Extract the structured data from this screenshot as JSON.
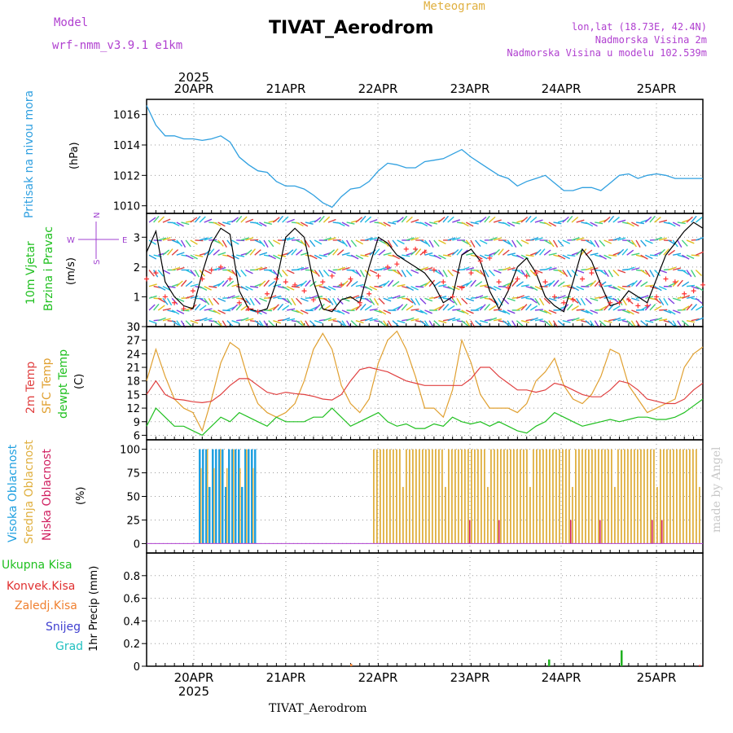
{
  "header": {
    "model_label": "Model",
    "model_name": "wrf-nmm_v3.9.1  e1km",
    "title": "TIVAT_Aerodrom",
    "meteogram": "Meteogram",
    "lonlat": "lon,lat (18.73E, 42.4N)",
    "altitude": "Nadmorska Visina 2m",
    "model_altitude": "Nadmorska Visina u modelu 102.539m",
    "footer_station": "TIVAT_Aerodrom",
    "credit": "made by Angel"
  },
  "time_axis": {
    "year": "2025",
    "days": [
      "20APR",
      "21APR",
      "22APR",
      "23APR",
      "24APR",
      "25APR"
    ]
  },
  "panels": {
    "pressure": {
      "label": "Pritisak na nivou mora",
      "unit": "(hPa)",
      "color": "#30a0e0"
    },
    "wind": {
      "label1": "10m Vjetar",
      "label2": "Brzina i Pravac",
      "unit": "(m/s)",
      "compass": [
        "N",
        "S",
        "W",
        "E"
      ]
    },
    "temp": {
      "label1": "2m Temp",
      "label2": "SFC Temp",
      "label3": "dewpt Temp",
      "unit": "(C)"
    },
    "cloud": {
      "label1": "Visoka Oblacnost",
      "label2": "Srednja Oblacnost",
      "label3": "Niska Oblacnost",
      "unit": "(%)"
    },
    "precip": {
      "unit": "1hr Precip (mm)",
      "legend": [
        "Ukupna Kisa",
        "Konvek.Kisa",
        "Zaledj.Kisa",
        "Snijeg",
        "Grad"
      ]
    }
  },
  "colors": {
    "pressure": "#30a0e0",
    "temp2m": "#e04040",
    "sfc": "#e0a030",
    "dewpt": "#20c020",
    "wind_line": "#000000",
    "gust": "#ff3030",
    "high_cloud": "#20a0e0",
    "mid_cloud": "#e0b040",
    "low_cloud": "#d02060",
    "total_rain": "#20b020",
    "conv_rain": "#e03030",
    "freeze_rain": "#f08030",
    "snow": "#4040d0",
    "hail": "#20c0c0"
  },
  "chart_data": [
    {
      "type": "line",
      "name": "pressure",
      "ylabel": "Pritisak na nivou mora (hPa)",
      "ylim": [
        1009.5,
        1017
      ],
      "yticks": [
        1010,
        1012,
        1014,
        1016
      ],
      "x": [
        0,
        1,
        2,
        3,
        4,
        5,
        6,
        7,
        8,
        9,
        10,
        11,
        12,
        13,
        14,
        15,
        16,
        17,
        18,
        19,
        20,
        21,
        22,
        23,
        24,
        25,
        26,
        27,
        28,
        29,
        30,
        31,
        32,
        33,
        34,
        35,
        36,
        37,
        38,
        39,
        40,
        41,
        42,
        43,
        44,
        45,
        46,
        47,
        48,
        49,
        50,
        51,
        52,
        53,
        54,
        55,
        56,
        57,
        58,
        59,
        60
      ],
      "series": [
        {
          "values": [
            1016.6,
            1015.3,
            1014.6,
            1014.6,
            1014.4,
            1014.4,
            1014.3,
            1014.4,
            1014.6,
            1014.2,
            1013.2,
            1012.7,
            1012.3,
            1012.2,
            1011.6,
            1011.3,
            1011.3,
            1011.1,
            1010.7,
            1010.2,
            1009.9,
            1010.6,
            1011.1,
            1011.2,
            1011.6,
            1012.3,
            1012.8,
            1012.7,
            1012.5,
            1012.5,
            1012.9,
            1013.0,
            1013.1,
            1013.4,
            1013.7,
            1013.2,
            1012.8,
            1012.4,
            1012.0,
            1011.8,
            1011.3,
            1011.6,
            1011.8,
            1012.0,
            1011.5,
            1011.0,
            1011.0,
            1011.2,
            1011.2,
            1011.0,
            1011.5,
            1012.0,
            1012.1,
            1011.8,
            1012.0,
            1012.1,
            1012.0,
            1011.8,
            1011.8,
            1011.8,
            1011.8
          ]
        }
      ]
    },
    {
      "type": "line",
      "name": "wind",
      "ylabel": "10m Vjetar Brzina i Pravac (m/s)",
      "ylim": [
        0,
        3.8
      ],
      "yticks": [
        0,
        1,
        2,
        3
      ],
      "x": [
        0,
        1,
        2,
        3,
        4,
        5,
        6,
        7,
        8,
        9,
        10,
        11,
        12,
        13,
        14,
        15,
        16,
        17,
        18,
        19,
        20,
        21,
        22,
        23,
        24,
        25,
        26,
        27,
        28,
        29,
        30,
        31,
        32,
        33,
        34,
        35,
        36,
        37,
        38,
        39,
        40,
        41,
        42,
        43,
        44,
        45,
        46,
        47,
        48,
        49,
        50,
        51,
        52,
        53,
        54,
        55,
        56,
        57,
        58,
        59,
        60
      ],
      "series": [
        {
          "values": [
            2.5,
            3.2,
            1.5,
            1.0,
            0.7,
            0.6,
            1.8,
            2.8,
            3.3,
            3.1,
            1.2,
            0.6,
            0.5,
            0.6,
            1.5,
            3.0,
            3.3,
            3.0,
            1.5,
            0.6,
            0.5,
            0.9,
            1.0,
            0.8,
            2.0,
            3.0,
            2.8,
            2.4,
            2.2,
            2.0,
            1.8,
            1.4,
            0.8,
            1.0,
            2.4,
            2.6,
            2.2,
            1.2,
            0.6,
            1.2,
            2.0,
            2.3,
            1.8,
            1.0,
            0.7,
            0.5,
            1.5,
            2.6,
            2.2,
            1.4,
            0.7,
            0.8,
            1.2,
            1.0,
            0.8,
            1.6,
            2.4,
            2.8,
            3.2,
            3.5,
            3.3
          ]
        },
        {
          "values": [
            1.6,
            1.8,
            1.0,
            0.8,
            0.6,
            1.2,
            1.6,
            1.9,
            2.0,
            1.6,
            0.8,
            0.6,
            0.5,
            1.1,
            1.6,
            1.5,
            1.4,
            1.2,
            0.9,
            1.5,
            1.7,
            1.4,
            1.6,
            0.8,
            1.1,
            1.7,
            2.0,
            2.1,
            2.6,
            2.6,
            2.5,
            1.9,
            1.5,
            1.0,
            1.3,
            1.8,
            2.2,
            2.3,
            1.5,
            1.3,
            1.6,
            1.7,
            1.8,
            1.5,
            1.0,
            0.8,
            0.9,
            1.6,
            1.8,
            1.4,
            0.8,
            0.8,
            0.9,
            0.7,
            0.7,
            1.0,
            1.6,
            1.5,
            1.1,
            1.2,
            1.4
          ]
        }
      ]
    },
    {
      "type": "line",
      "name": "temperature",
      "ylabel": "Temp (C)",
      "ylim": [
        5,
        30
      ],
      "yticks": [
        6,
        9,
        12,
        15,
        18,
        21,
        24,
        27,
        30
      ],
      "x": [
        0,
        1,
        2,
        3,
        4,
        5,
        6,
        7,
        8,
        9,
        10,
        11,
        12,
        13,
        14,
        15,
        16,
        17,
        18,
        19,
        20,
        21,
        22,
        23,
        24,
        25,
        26,
        27,
        28,
        29,
        30,
        31,
        32,
        33,
        34,
        35,
        36,
        37,
        38,
        39,
        40,
        41,
        42,
        43,
        44,
        45,
        46,
        47,
        48,
        49,
        50,
        51,
        52,
        53,
        54,
        55,
        56,
        57,
        58,
        59,
        60
      ],
      "series": [
        {
          "values": [
            15,
            18,
            15,
            14,
            13.8,
            13.4,
            13.2,
            13.5,
            15,
            17,
            18.5,
            18.5,
            17,
            15.5,
            15,
            15.5,
            15.2,
            15,
            14.6,
            14,
            13.8,
            15,
            18,
            20.5,
            21,
            20.5,
            20,
            19,
            18,
            17.5,
            17,
            17,
            17,
            17,
            17,
            18.5,
            21,
            21,
            19,
            17.5,
            16,
            16,
            15.5,
            16,
            17.5,
            17,
            16,
            15,
            14.5,
            14.5,
            16,
            18,
            17.5,
            16,
            14,
            13.5,
            13,
            13,
            14,
            16,
            17.5
          ]
        },
        {
          "values": [
            18,
            25,
            19,
            14,
            12,
            11,
            7,
            14,
            22,
            26.5,
            25,
            18,
            13,
            11,
            10,
            11,
            13,
            18,
            25,
            28.5,
            25,
            17,
            13,
            11,
            14,
            22,
            27,
            29,
            25,
            19,
            12,
            12,
            10,
            16,
            27,
            22,
            15,
            12,
            12,
            12,
            11,
            13,
            18,
            20,
            23,
            17,
            14,
            13,
            15,
            19,
            25,
            24,
            17,
            14,
            11,
            12,
            13,
            14,
            21,
            24,
            25.5
          ]
        },
        {
          "values": [
            8,
            12,
            10,
            8,
            8,
            7,
            6,
            8,
            10,
            9,
            11,
            10,
            9,
            8,
            10,
            9,
            9,
            9,
            10,
            10,
            12,
            10,
            8,
            9,
            10,
            11,
            9,
            8,
            8.5,
            7.5,
            7.5,
            8.5,
            8,
            10,
            9,
            8.5,
            9,
            8,
            9,
            8,
            7,
            6.5,
            8,
            9,
            11,
            10,
            9,
            8,
            8.5,
            9,
            9.5,
            9,
            9.5,
            10,
            10,
            9.5,
            9.5,
            10,
            11,
            12.5,
            14
          ]
        }
      ]
    },
    {
      "type": "bar",
      "name": "cloud",
      "ylabel": "Oblacnost (%)",
      "ylim": [
        -10,
        110
      ],
      "yticks": [
        0,
        25,
        50,
        75,
        100
      ]
    },
    {
      "type": "bar",
      "name": "precip",
      "ylabel": "1hr Precip (mm)",
      "ylim": [
        0,
        1.0
      ],
      "yticks": [
        0,
        0.2,
        0.4,
        0.6,
        0.8
      ]
    }
  ]
}
